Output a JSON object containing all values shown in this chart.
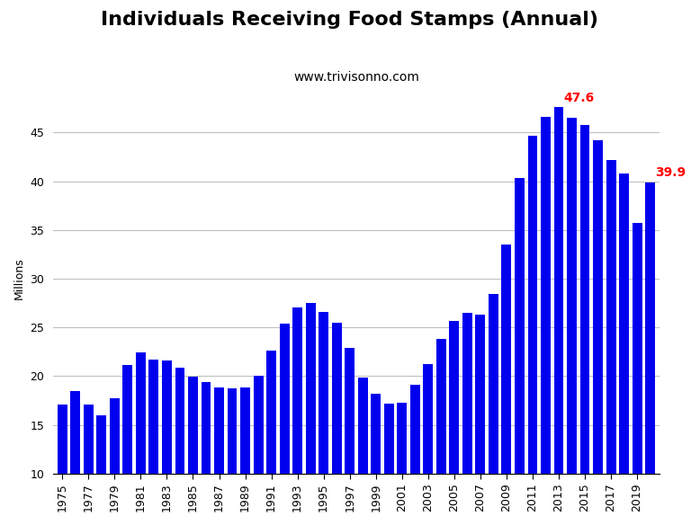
{
  "title": "Individuals Receiving Food Stamps (Annual)",
  "subtitle": "www.trivisonno.com",
  "ylabel": "Millions",
  "bar_color": "#0000ee",
  "background_color": "#ffffff",
  "years": [
    1975,
    1976,
    1977,
    1978,
    1979,
    1980,
    1981,
    1982,
    1983,
    1984,
    1985,
    1986,
    1987,
    1988,
    1989,
    1990,
    1991,
    1992,
    1993,
    1994,
    1995,
    1996,
    1997,
    1998,
    1999,
    2000,
    2001,
    2002,
    2003,
    2004,
    2005,
    2006,
    2007,
    2008,
    2009,
    2010,
    2011,
    2012,
    2013,
    2014,
    2015,
    2016,
    2017,
    2018,
    2019,
    2020
  ],
  "values": [
    17.1,
    18.5,
    17.1,
    16.0,
    17.7,
    21.1,
    22.4,
    21.7,
    21.6,
    20.9,
    19.9,
    19.4,
    18.8,
    18.7,
    18.8,
    20.0,
    22.6,
    25.4,
    27.0,
    27.5,
    26.6,
    25.5,
    22.9,
    19.8,
    18.2,
    17.2,
    17.3,
    19.1,
    21.2,
    23.8,
    25.7,
    26.5,
    26.3,
    28.4,
    33.5,
    40.3,
    44.7,
    46.6,
    47.6,
    46.5,
    45.8,
    44.2,
    42.2,
    40.8,
    35.7,
    39.9
  ],
  "peak_year": 2013,
  "peak_value": 47.6,
  "last_year": 2020,
  "last_value": 39.9,
  "ylim": [
    10,
    50
  ],
  "yticks": [
    10,
    15,
    20,
    25,
    30,
    35,
    40,
    45
  ],
  "annotation_color": "#ff0000",
  "grid_color": "#c0c0c0",
  "title_fontsize": 16,
  "subtitle_fontsize": 10,
  "ylabel_fontsize": 9,
  "tick_fontsize": 9
}
